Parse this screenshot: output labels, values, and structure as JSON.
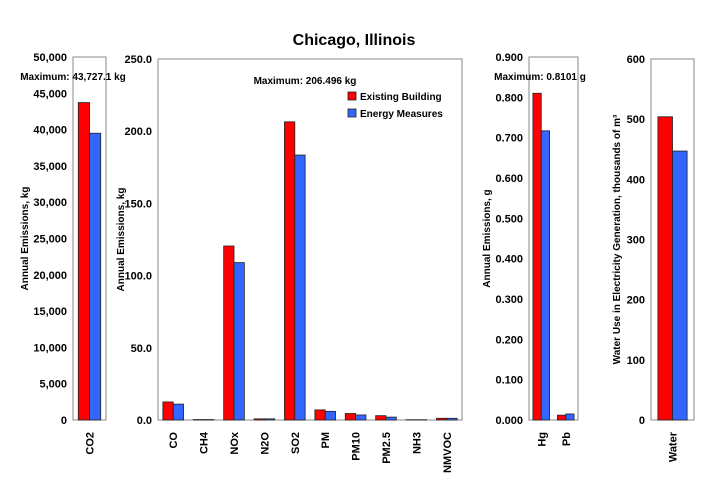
{
  "chart_data": [
    {
      "type": "bar",
      "title": "Chicago, Illinois",
      "ylabel": "Annual Emissions, kg",
      "ylim": [
        0,
        50000
      ],
      "yticks": [
        "0",
        "5,000",
        "10,000",
        "15,000",
        "20,000",
        "25,000",
        "30,000",
        "35,000",
        "40,000",
        "45,000",
        "50,000"
      ],
      "annotation": "Maximum: 43,727.1 kg",
      "categories": [
        "CO2"
      ],
      "series": [
        {
          "name": "Existing Building",
          "color": "#ff0000",
          "values": [
            43727.1
          ]
        },
        {
          "name": "Energy Measures",
          "color": "#3366ff",
          "values": [
            39500
          ]
        }
      ]
    },
    {
      "type": "bar",
      "ylabel": "Annual Emissions, kg",
      "ylim": [
        0,
        250
      ],
      "yticks": [
        "0.0",
        "50.0",
        "100.0",
        "150.0",
        "200.0",
        "250.0"
      ],
      "annotation": "Maximum: 206.496 kg",
      "categories": [
        "CO",
        "CH4",
        "NOx",
        "N2O",
        "SO2",
        "PM",
        "PM10",
        "PM2.5",
        "NH3",
        "NMVOC"
      ],
      "legend": "top-right",
      "series": [
        {
          "name": "Existing Building",
          "color": "#ff0000",
          "values": [
            12.5,
            0.3,
            120.5,
            0.8,
            206.5,
            7,
            4.5,
            3,
            0.2,
            1.2
          ]
        },
        {
          "name": "Energy Measures",
          "color": "#3366ff",
          "values": [
            11,
            0.3,
            109,
            0.8,
            183.5,
            6,
            3.5,
            2,
            0.2,
            1.2
          ]
        }
      ]
    },
    {
      "type": "bar",
      "ylabel": "Annual Emissions, g",
      "ylim": [
        0,
        0.9
      ],
      "yticks": [
        "0.000",
        "0.100",
        "0.200",
        "0.300",
        "0.400",
        "0.500",
        "0.600",
        "0.700",
        "0.800",
        "0.900"
      ],
      "annotation": "Maximum: 0.8101 g",
      "categories": [
        "Hg",
        "Pb"
      ],
      "series": [
        {
          "name": "Existing Building",
          "color": "#ff0000",
          "values": [
            0.8101,
            0.012
          ]
        },
        {
          "name": "Energy Measures",
          "color": "#3366ff",
          "values": [
            0.717,
            0.015
          ]
        }
      ]
    },
    {
      "type": "bar",
      "ylabel": "Water Use in Electricity Generation, thousands of m³",
      "ylim": [
        0,
        600
      ],
      "yticks": [
        "0",
        "100",
        "200",
        "300",
        "400",
        "500",
        "600"
      ],
      "categories": [
        "Water"
      ],
      "series": [
        {
          "name": "Existing Building",
          "color": "#ff0000",
          "values": [
            504
          ]
        },
        {
          "name": "Energy Measures",
          "color": "#3366ff",
          "values": [
            447
          ]
        }
      ]
    }
  ]
}
